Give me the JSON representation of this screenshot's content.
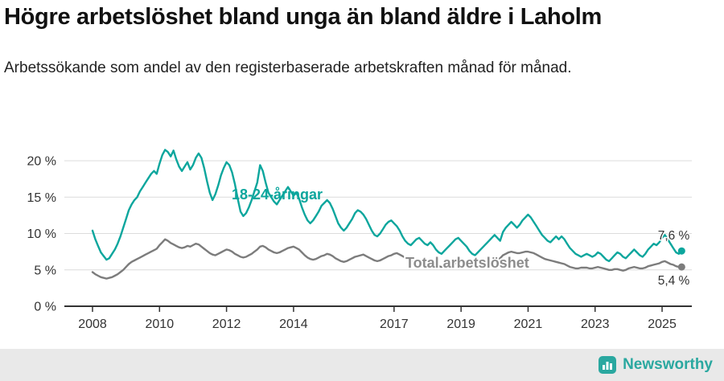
{
  "title": "Högre arbetslöshet bland unga än bland äldre i Laholm",
  "subtitle": "Arbetssökande som andel av den registerbaserade arbetskraften månad för månad.",
  "footer": {
    "brand": "Newsworthy"
  },
  "colors": {
    "youth_line": "#0ca69d",
    "total_line": "#7c7c7c",
    "total_label": "#8c8c8c",
    "axis": "#333333",
    "grid": "#dcdcdc",
    "text": "#333333",
    "brand_teal": "#2aa8a0"
  },
  "chart_data": {
    "type": "line",
    "title": "Högre arbetslöshet bland unga än bland äldre i Laholm",
    "subtitle": "Arbetssökande som andel av den registerbaserade arbetskraften månad för månad.",
    "x_start": "2008-01",
    "x_end": "2025-08",
    "frequency": "monthly",
    "x_ticks": [
      2008,
      2010,
      2012,
      2014,
      2017,
      2019,
      2021,
      2023,
      2025
    ],
    "y_ticks": [
      0,
      5,
      10,
      15,
      20
    ],
    "y_tick_suffix": " %",
    "ylim": [
      0,
      22.5
    ],
    "grid": true,
    "legend_position": "inline-labels",
    "series": [
      {
        "name": "18-24-åringar",
        "color": "#0ca69d",
        "end_label": "7,6 %",
        "end_value": 7.6,
        "values": [
          10.4,
          9.2,
          8.3,
          7.4,
          6.9,
          6.4,
          6.6,
          7.2,
          7.8,
          8.6,
          9.6,
          10.8,
          12.0,
          13.2,
          14.0,
          14.6,
          15.0,
          15.8,
          16.4,
          17.0,
          17.6,
          18.2,
          18.6,
          18.2,
          19.6,
          20.8,
          21.5,
          21.2,
          20.6,
          21.4,
          20.2,
          19.2,
          18.6,
          19.2,
          19.8,
          18.8,
          19.4,
          20.4,
          21.0,
          20.4,
          19.0,
          17.2,
          15.6,
          14.6,
          15.4,
          16.6,
          18.0,
          19.0,
          19.8,
          19.4,
          18.4,
          16.8,
          14.8,
          13.0,
          12.4,
          12.8,
          13.6,
          14.6,
          15.8,
          17.0,
          19.4,
          18.6,
          17.0,
          15.6,
          15.0,
          14.4,
          14.0,
          14.6,
          15.2,
          15.8,
          16.4,
          15.8,
          15.2,
          15.6,
          14.8,
          13.6,
          12.6,
          11.8,
          11.4,
          11.8,
          12.4,
          13.0,
          13.8,
          14.2,
          14.6,
          14.2,
          13.4,
          12.4,
          11.4,
          10.8,
          10.4,
          10.8,
          11.4,
          12.0,
          12.8,
          13.2,
          13.0,
          12.6,
          12.0,
          11.2,
          10.4,
          9.8,
          9.6,
          10.0,
          10.6,
          11.2,
          11.6,
          11.8,
          11.4,
          11.0,
          10.4,
          9.6,
          9.0,
          8.6,
          8.4,
          8.8,
          9.2,
          9.4,
          9.0,
          8.6,
          8.4,
          8.8,
          8.4,
          7.8,
          7.4,
          7.2,
          7.6,
          8.0,
          8.4,
          8.8,
          9.2,
          9.4,
          9.0,
          8.6,
          8.2,
          7.6,
          7.2,
          7.0,
          7.4,
          7.8,
          8.2,
          8.6,
          9.0,
          9.4,
          9.8,
          9.4,
          9.0,
          10.2,
          10.8,
          11.2,
          11.6,
          11.2,
          10.8,
          11.2,
          11.8,
          12.2,
          12.6,
          12.2,
          11.6,
          11.0,
          10.4,
          9.8,
          9.4,
          9.0,
          8.8,
          9.2,
          9.6,
          9.2,
          9.6,
          9.2,
          8.6,
          8.0,
          7.6,
          7.2,
          7.0,
          6.8,
          7.0,
          7.2,
          7.0,
          6.8,
          7.0,
          7.4,
          7.2,
          6.8,
          6.4,
          6.2,
          6.6,
          7.0,
          7.4,
          7.2,
          6.8,
          6.6,
          7.0,
          7.4,
          7.8,
          7.4,
          7.0,
          6.8,
          7.2,
          7.8,
          8.2,
          8.6,
          8.4,
          8.8,
          9.4,
          9.8,
          9.2,
          8.6,
          8.0,
          7.4,
          7.2,
          7.6
        ]
      },
      {
        "name": "Total arbetslöshet",
        "color": "#7c7c7c",
        "end_label": "5,4 %",
        "end_value": 5.4,
        "values": [
          4.7,
          4.4,
          4.2,
          4.0,
          3.9,
          3.8,
          3.9,
          4.0,
          4.2,
          4.4,
          4.7,
          5.0,
          5.4,
          5.8,
          6.1,
          6.3,
          6.5,
          6.7,
          6.9,
          7.1,
          7.3,
          7.5,
          7.7,
          7.9,
          8.4,
          8.8,
          9.2,
          9.0,
          8.7,
          8.5,
          8.3,
          8.1,
          8.0,
          8.1,
          8.3,
          8.2,
          8.4,
          8.6,
          8.5,
          8.2,
          7.9,
          7.6,
          7.3,
          7.1,
          7.0,
          7.2,
          7.4,
          7.6,
          7.8,
          7.7,
          7.5,
          7.2,
          7.0,
          6.8,
          6.7,
          6.8,
          7.0,
          7.2,
          7.5,
          7.8,
          8.2,
          8.3,
          8.1,
          7.8,
          7.6,
          7.4,
          7.3,
          7.4,
          7.6,
          7.8,
          8.0,
          8.1,
          8.2,
          8.0,
          7.8,
          7.4,
          7.0,
          6.7,
          6.5,
          6.4,
          6.5,
          6.7,
          6.9,
          7.0,
          7.2,
          7.1,
          6.9,
          6.6,
          6.4,
          6.2,
          6.1,
          6.2,
          6.4,
          6.6,
          6.8,
          6.9,
          7.0,
          7.1,
          6.9,
          6.7,
          6.5,
          6.3,
          6.2,
          6.3,
          6.5,
          6.7,
          6.9,
          7.0,
          7.2,
          7.3,
          7.1,
          6.9,
          6.7,
          6.5,
          6.3,
          6.2,
          6.1,
          6.2,
          6.3,
          6.2,
          6.1,
          6.0,
          5.9,
          5.7,
          5.5,
          5.4,
          5.5,
          5.6,
          5.7,
          5.8,
          5.9,
          6.0,
          6.0,
          5.9,
          5.8,
          5.6,
          5.5,
          5.5,
          5.6,
          5.7,
          5.8,
          5.9,
          6.0,
          6.1,
          6.3,
          6.4,
          6.6,
          7.0,
          7.2,
          7.4,
          7.5,
          7.4,
          7.3,
          7.3,
          7.4,
          7.5,
          7.5,
          7.4,
          7.3,
          7.1,
          6.9,
          6.7,
          6.5,
          6.4,
          6.3,
          6.2,
          6.1,
          6.0,
          5.9,
          5.8,
          5.6,
          5.4,
          5.3,
          5.2,
          5.2,
          5.3,
          5.3,
          5.3,
          5.2,
          5.2,
          5.3,
          5.4,
          5.3,
          5.2,
          5.1,
          5.0,
          5.0,
          5.1,
          5.1,
          5.0,
          4.9,
          5.0,
          5.2,
          5.3,
          5.4,
          5.3,
          5.2,
          5.2,
          5.3,
          5.5,
          5.6,
          5.7,
          5.8,
          5.9,
          6.1,
          6.2,
          6.0,
          5.8,
          5.7,
          5.5,
          5.4,
          5.4
        ]
      }
    ]
  }
}
